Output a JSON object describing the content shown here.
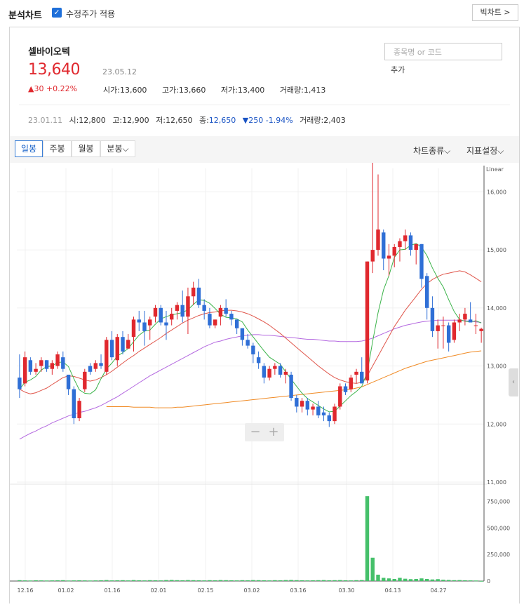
{
  "header": {
    "title": "분석차트",
    "adjusted_checkbox_label": "수정주가 적용",
    "adjusted_checked": true,
    "big_chart_label": "빅차트 >"
  },
  "stock": {
    "name": "셀바이오텍",
    "price": "13,640",
    "date": "23.05.12",
    "change": "▲30 +0.22%",
    "open": "시가:13,600",
    "high": "고가:13,660",
    "low": "저가:13,400",
    "volume": "거래량:1,413"
  },
  "search": {
    "placeholder": "종목명 or 코드",
    "add_label": "추가"
  },
  "history": {
    "date": "23.01.11",
    "open": "시:12,800",
    "high": "고:12,900",
    "low": "저:12,650",
    "close_label": "종:",
    "close": "12,650",
    "change": "▼250 -1.94%",
    "volume": "거래량:2,403"
  },
  "tabs": [
    "일봉",
    "주봉",
    "월봉",
    "분봉⌵"
  ],
  "active_tab": "일봉",
  "toolbar": {
    "chart_type": "차트종류⌵",
    "indicator": "지표설정⌵"
  },
  "colors": {
    "up": "#e0282e",
    "down": "#2f6fd6",
    "ma5": "#3cb44b",
    "ma20": "#e0564b",
    "ma60": "#b469e0",
    "ma120": "#f08a24",
    "volume": "#45c06a"
  },
  "chart_data": {
    "type": "candlestick",
    "scale_label": "Linear",
    "price_ticks": [
      "16,000",
      "15,000",
      "14,000",
      "13,000",
      "12,000",
      "11,000"
    ],
    "volume_ticks": [
      "750,000",
      "500,000",
      "250,000",
      "0"
    ],
    "x_labels": [
      "12.16",
      "01.02",
      "01.16",
      "02.01",
      "02.15",
      "03.02",
      "03.16",
      "03.30",
      "04.13",
      "04.27"
    ],
    "ylim": [
      11000,
      16500
    ],
    "candles": [
      [
        12800,
        13200,
        12450,
        12600
      ],
      [
        12700,
        13250,
        12650,
        13150
      ],
      [
        13100,
        13150,
        12850,
        12900
      ],
      [
        12900,
        13050,
        12850,
        12950
      ],
      [
        13000,
        13150,
        12900,
        13100
      ],
      [
        13100,
        13100,
        12900,
        12950
      ],
      [
        12950,
        13100,
        12850,
        13050
      ],
      [
        13000,
        13250,
        12950,
        13200
      ],
      [
        13150,
        13250,
        12900,
        12950
      ],
      [
        12850,
        12850,
        12500,
        12600
      ],
      [
        12600,
        12650,
        12000,
        12100
      ],
      [
        12100,
        12450,
        12050,
        12400
      ],
      [
        12600,
        12950,
        12550,
        12900
      ],
      [
        13000,
        13050,
        12850,
        12900
      ],
      [
        12950,
        13100,
        12900,
        13050
      ],
      [
        13050,
        13200,
        12950,
        13000
      ],
      [
        12900,
        13500,
        12850,
        13450
      ],
      [
        13450,
        13600,
        13100,
        13150
      ],
      [
        13100,
        13550,
        13000,
        13500
      ],
      [
        13500,
        13600,
        13200,
        13250
      ],
      [
        13300,
        13550,
        13300,
        13450
      ],
      [
        13500,
        13850,
        13250,
        13800
      ],
      [
        13800,
        13950,
        13600,
        13750
      ],
      [
        13750,
        13950,
        13350,
        13600
      ],
      [
        13700,
        13850,
        13450,
        13800
      ],
      [
        13850,
        14050,
        13750,
        14000
      ],
      [
        14000,
        14050,
        13700,
        13750
      ],
      [
        13750,
        13950,
        13450,
        13700
      ],
      [
        13800,
        14000,
        13700,
        13900
      ],
      [
        13950,
        14100,
        13800,
        14050
      ],
      [
        14050,
        14300,
        13750,
        13850
      ],
      [
        13850,
        14350,
        13550,
        14200
      ],
      [
        14200,
        14450,
        14050,
        14350
      ],
      [
        14350,
        14500,
        14000,
        14050
      ],
      [
        14050,
        14150,
        13800,
        13950
      ],
      [
        13900,
        14000,
        13650,
        13700
      ],
      [
        13700,
        13800,
        13650,
        13800
      ],
      [
        13850,
        14050,
        13700,
        14000
      ],
      [
        14000,
        14150,
        13850,
        13900
      ],
      [
        13900,
        13950,
        13700,
        13800
      ],
      [
        13800,
        13800,
        13550,
        13650
      ],
      [
        13650,
        13650,
        13350,
        13450
      ],
      [
        13450,
        13550,
        13300,
        13350
      ],
      [
        13350,
        13400,
        13050,
        13200
      ],
      [
        13150,
        13250,
        12950,
        13050
      ],
      [
        13000,
        13050,
        12700,
        12800
      ],
      [
        12800,
        13000,
        12750,
        12950
      ],
      [
        12950,
        13050,
        12850,
        13000
      ],
      [
        13000,
        13050,
        12800,
        12850
      ],
      [
        12850,
        12950,
        12700,
        12900
      ],
      [
        12850,
        12900,
        12400,
        12450
      ],
      [
        12450,
        12500,
        12200,
        12300
      ],
      [
        12300,
        12450,
        12200,
        12400
      ],
      [
        12400,
        12450,
        12150,
        12250
      ],
      [
        12250,
        12350,
        12150,
        12300
      ],
      [
        12300,
        12400,
        12100,
        12150
      ],
      [
        12200,
        12300,
        12050,
        12150
      ],
      [
        12150,
        12200,
        11950,
        12050
      ],
      [
        12050,
        12350,
        12000,
        12300
      ],
      [
        12300,
        12700,
        12250,
        12650
      ],
      [
        12650,
        12700,
        12500,
        12550
      ],
      [
        12600,
        12850,
        12550,
        12800
      ],
      [
        12850,
        12950,
        12700,
        12900
      ],
      [
        12900,
        13150,
        12700,
        12700
      ],
      [
        12750,
        14800,
        12700,
        14800
      ],
      [
        14800,
        16500,
        14600,
        15000
      ],
      [
        15000,
        16300,
        14900,
        15350
      ],
      [
        15300,
        15350,
        14650,
        14850
      ],
      [
        14850,
        15100,
        14550,
        14900
      ],
      [
        14900,
        15100,
        14700,
        15050
      ],
      [
        15050,
        15200,
        14800,
        15150
      ],
      [
        15150,
        15350,
        15000,
        15250
      ],
      [
        15250,
        15300,
        14900,
        15000
      ],
      [
        15000,
        15100,
        14750,
        15100
      ],
      [
        15100,
        15100,
        14350,
        14500
      ],
      [
        14550,
        14600,
        13800,
        14000
      ],
      [
        14000,
        14200,
        13500,
        13600
      ],
      [
        13600,
        13800,
        13300,
        13700
      ],
      [
        13700,
        13850,
        13300,
        13700
      ],
      [
        13700,
        13750,
        13250,
        13400
      ],
      [
        13450,
        13800,
        13400,
        13750
      ],
      [
        13750,
        13900,
        13600,
        13800
      ],
      [
        13800,
        14000,
        13700,
        13900
      ],
      [
        13800,
        14100,
        13750,
        13750
      ],
      [
        13700,
        13900,
        13550,
        13700
      ],
      [
        13600,
        13660,
        13400,
        13640
      ]
    ],
    "ma5": [
      12600,
      12720,
      12760,
      12820,
      12930,
      12990,
      13000,
      13060,
      13070,
      12990,
      12780,
      12590,
      12530,
      12520,
      12590,
      12780,
      12950,
      13050,
      13170,
      13230,
      13300,
      13420,
      13530,
      13600,
      13620,
      13720,
      13810,
      13850,
      13880,
      13900,
      13920,
      13970,
      14060,
      14140,
      14130,
      14080,
      13990,
      13890,
      13840,
      13830,
      13810,
      13760,
      13620,
      13500,
      13380,
      13260,
      13150,
      13090,
      13030,
      12900,
      12770,
      12650,
      12530,
      12440,
      12380,
      12320,
      12260,
      12210,
      12220,
      12310,
      12400,
      12490,
      12560,
      12650,
      12890,
      13420,
      13920,
      14310,
      14560,
      14870,
      15000,
      15010,
      15080,
      15110,
      15050,
      14900,
      14690,
      14510,
      14360,
      14140,
      13940,
      13800,
      13770,
      13760,
      13780,
      13740
    ],
    "ma20": [
      12600,
      12550,
      12520,
      12540,
      12580,
      12620,
      12680,
      12740,
      12800,
      12830,
      12820,
      12790,
      12760,
      12740,
      12760,
      12800,
      12850,
      12910,
      12980,
      13050,
      13120,
      13180,
      13250,
      13310,
      13370,
      13430,
      13490,
      13560,
      13620,
      13680,
      13740,
      13790,
      13830,
      13870,
      13900,
      13920,
      13930,
      13950,
      13960,
      13960,
      13950,
      13930,
      13900,
      13860,
      13810,
      13760,
      13700,
      13630,
      13560,
      13480,
      13400,
      13320,
      13240,
      13160,
      13080,
      13000,
      12930,
      12860,
      12800,
      12760,
      12730,
      12710,
      12700,
      12720,
      12830,
      13000,
      13170,
      13340,
      13510,
      13680,
      13820,
      13960,
      14080,
      14200,
      14320,
      14420,
      14490,
      14540,
      14580,
      14600,
      14620,
      14640,
      14620,
      14570,
      14510,
      14450
    ],
    "ma60": [
      11740,
      11790,
      11840,
      11880,
      11930,
      11970,
      12020,
      12060,
      12100,
      12140,
      12170,
      12200,
      12220,
      12250,
      12280,
      12320,
      12370,
      12420,
      12470,
      12530,
      12590,
      12650,
      12710,
      12770,
      12830,
      12880,
      12930,
      12980,
      13030,
      13080,
      13130,
      13180,
      13230,
      13280,
      13330,
      13370,
      13410,
      13430,
      13460,
      13480,
      13500,
      13520,
      13530,
      13540,
      13540,
      13530,
      13530,
      13520,
      13510,
      13500,
      13490,
      13480,
      13470,
      13460,
      13460,
      13450,
      13440,
      13430,
      13430,
      13420,
      13420,
      13420,
      13420,
      13430,
      13450,
      13480,
      13520,
      13560,
      13600,
      13640,
      13670,
      13700,
      13720,
      13740,
      13760,
      13770,
      13780,
      13790,
      13790,
      13790,
      13790,
      13790,
      13780,
      13770,
      13760,
      13750
    ],
    "ma120": [
      null,
      null,
      null,
      null,
      null,
      null,
      null,
      null,
      null,
      null,
      null,
      null,
      null,
      null,
      null,
      null,
      12300,
      12300,
      12300,
      12300,
      12300,
      12290,
      12290,
      12290,
      12290,
      12280,
      12280,
      12280,
      12280,
      12290,
      12290,
      12300,
      12310,
      12320,
      12330,
      12340,
      12350,
      12360,
      12370,
      12380,
      12390,
      12400,
      12410,
      12420,
      12430,
      12440,
      12450,
      12460,
      12470,
      12480,
      12490,
      12500,
      12510,
      12520,
      12530,
      12540,
      12550,
      12560,
      12570,
      12580,
      12590,
      12600,
      12620,
      12640,
      12680,
      12720,
      12760,
      12800,
      12840,
      12880,
      12920,
      12960,
      12990,
      13020,
      13050,
      13080,
      13100,
      13120,
      13140,
      13160,
      13180,
      13200,
      13220,
      13240,
      13250,
      13260
    ],
    "volumes": [
      8000,
      6000,
      5000,
      7000,
      6000,
      5000,
      6000,
      7000,
      8000,
      5000,
      6000,
      7000,
      6000,
      5000,
      6000,
      7000,
      9000,
      6000,
      7000,
      8000,
      6000,
      9000,
      7000,
      6000,
      8000,
      7000,
      6000,
      9000,
      10000,
      8000,
      7000,
      9000,
      8000,
      7000,
      6000,
      8000,
      7000,
      9000,
      8000,
      7000,
      6000,
      8000,
      7000,
      9000,
      8000,
      7000,
      6000,
      8000,
      7000,
      9000,
      10000,
      8000,
      7000,
      6000,
      7000,
      8000,
      9000,
      7000,
      8000,
      9000,
      7000,
      6000,
      8000,
      9000,
      800000,
      220000,
      60000,
      30000,
      25000,
      20000,
      30000,
      22000,
      18000,
      20000,
      25000,
      20000,
      15000,
      18000,
      12000,
      10000,
      8000,
      9000,
      7000,
      6000,
      5000,
      1413
    ],
    "volume_ylim": [
      0,
      900000
    ]
  }
}
